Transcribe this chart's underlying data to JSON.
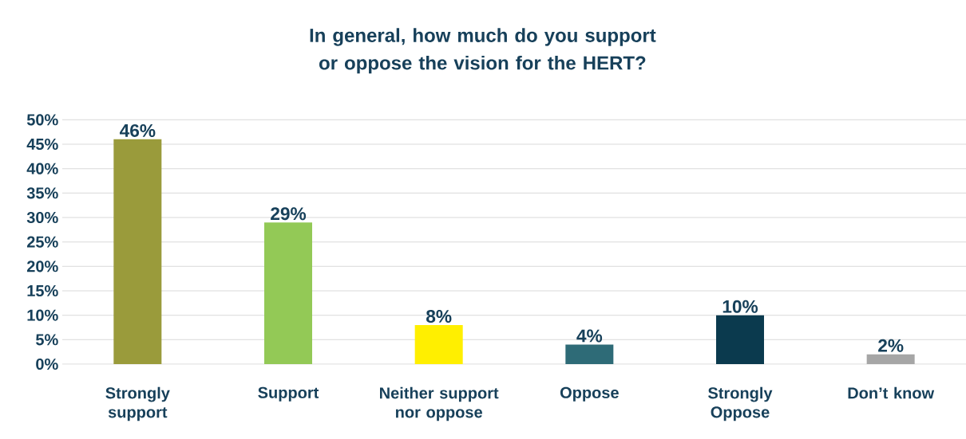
{
  "chart_data": {
    "type": "bar",
    "title": "In general, how much do you support or oppose the vision for the HERT?",
    "categories": [
      "Strongly support",
      "Support",
      "Neither support nor oppose",
      "Oppose",
      "Strongly Oppose",
      "Don’t know"
    ],
    "values": [
      46,
      29,
      8,
      4,
      10,
      2
    ],
    "value_labels": [
      "46%",
      "29%",
      "8%",
      "4%",
      "10%",
      "2%"
    ],
    "colors": [
      "#9a9b3b",
      "#93c956",
      "#ffef00",
      "#2e6b77",
      "#0b3a4e",
      "#a6a6a6"
    ],
    "ylim": [
      0,
      50
    ],
    "yticks": [
      {
        "value": 0,
        "label": "0%"
      },
      {
        "value": 5,
        "label": "5%"
      },
      {
        "value": 10,
        "label": "10%"
      },
      {
        "value": 15,
        "label": "15%"
      },
      {
        "value": 20,
        "label": "20%"
      },
      {
        "value": 25,
        "label": "25%"
      },
      {
        "value": 30,
        "label": "30%"
      },
      {
        "value": 35,
        "label": "35%"
      },
      {
        "value": 40,
        "label": "40%"
      },
      {
        "value": 45,
        "label": "45%"
      },
      {
        "value": 50,
        "label": "50%"
      }
    ],
    "grid": "y"
  }
}
